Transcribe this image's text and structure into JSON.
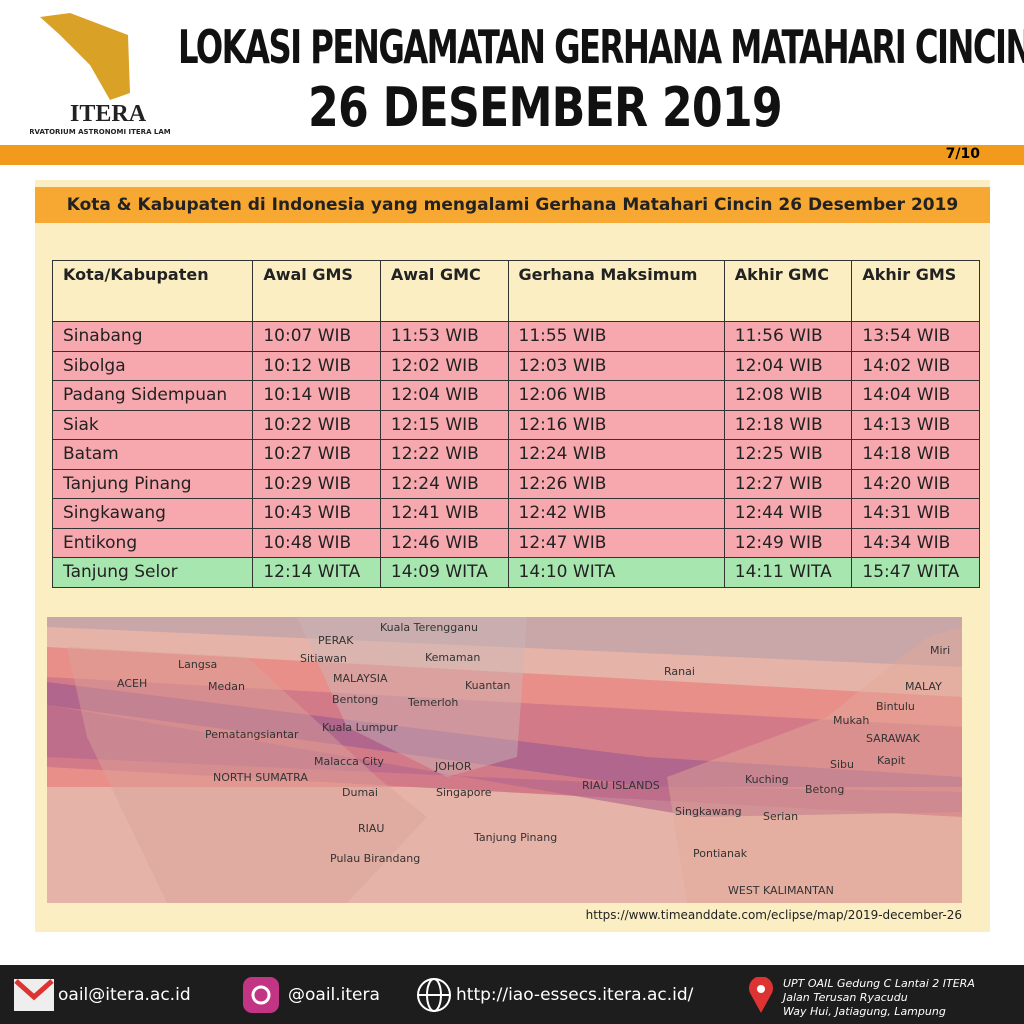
{
  "header": {
    "logo_text": "ITERA",
    "logo_subtitle": "OBSERVATORIUM ASTRONOMI ITERA LAMPUNG",
    "title": "LOKASI PENGAMATAN GERHANA MATAHARI CINCIN",
    "date": "26 DESEMBER 2019"
  },
  "page_number": "7/10",
  "banner": "Kota & Kabupaten di Indonesia yang mengalami Gerhana Matahari Cincin 26 Desember 2019",
  "table": {
    "columns": [
      "Kota/Kabupaten",
      "Awal GMS",
      "Awal GMC",
      "Gerhana Maksimum",
      "Akhir GMC",
      "Akhir GMS"
    ],
    "rows": [
      [
        "Sinabang",
        "10:07 WIB",
        "11:53 WIB",
        "11:55 WIB",
        "11:56 WIB",
        "13:54 WIB"
      ],
      [
        "Sibolga",
        "10:12 WIB",
        "12:02 WIB",
        "12:03 WIB",
        "12:04 WIB",
        "14:02 WIB"
      ],
      [
        "Padang Sidempuan",
        "10:14 WIB",
        "12:04 WIB",
        "12:06 WIB",
        "12:08 WIB",
        "14:04 WIB"
      ],
      [
        "Siak",
        "10:22 WIB",
        "12:15 WIB",
        "12:16 WIB",
        "12:18 WIB",
        "14:13 WIB"
      ],
      [
        "Batam",
        "10:27 WIB",
        "12:22 WIB",
        "12:24 WIB",
        "12:25 WIB",
        "14:18 WIB"
      ],
      [
        "Tanjung Pinang",
        "10:29 WIB",
        "12:24 WIB",
        "12:26 WIB",
        "12:27 WIB",
        "14:20 WIB"
      ],
      [
        "Singkawang",
        "10:43 WIB",
        "12:41 WIB",
        "12:42 WIB",
        "12:44 WIB",
        "14:31 WIB"
      ],
      [
        "Entikong",
        "10:48 WIB",
        "12:46 WIB",
        "12:47 WIB",
        "12:49 WIB",
        "14:34 WIB"
      ],
      [
        "Tanjung Selor",
        "12:14 WITA",
        "14:09 WITA",
        "14:10 WITA",
        "14:11 WITA",
        "15:47 WITA"
      ]
    ]
  },
  "map": {
    "labels": [
      "Kuala Terengganu",
      "PERAK",
      "Sitiawan",
      "Kemaman",
      "MALAYSIA",
      "Langsa",
      "ACEH",
      "Medan",
      "Bentong",
      "Kuantan",
      "Temerloh",
      "Kuala Lumpur",
      "Pematangsiantar",
      "Malacca City",
      "JOHOR",
      "NORTH SUMATRA",
      "Dumai",
      "Singapore",
      "RIAU ISLANDS",
      "RIAU",
      "Tanjung Pinang",
      "Pulau Birandang",
      "Ranai",
      "Miri",
      "MALAY",
      "Bintulu",
      "Mukah",
      "SARAWAK",
      "Kapit",
      "Sibu",
      "Kuching",
      "Betong",
      "Singkawang",
      "Serian",
      "Pontianak",
      "WEST KALIMANTAN"
    ],
    "source": "https://www.timeanddate.com/eclipse/map/2019-december-26"
  },
  "footer": {
    "email": "oail@itera.ac.id",
    "instagram": "@oail.itera",
    "website": "http://iao-essecs.itera.ac.id/",
    "address": [
      "UPT OAIL Gedung C Lantai 2 ITERA",
      "Jalan Terusan Ryacudu",
      "Way Hui, Jatiagung, Lampung"
    ]
  }
}
